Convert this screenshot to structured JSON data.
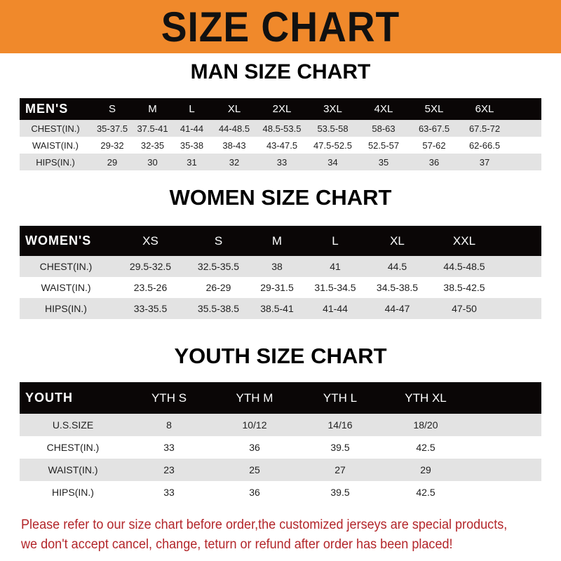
{
  "title": "SIZE CHART",
  "men": {
    "title": "MAN SIZE CHART",
    "header": [
      "MEN'S",
      "S",
      "M",
      "L",
      "XL",
      "2XL",
      "3XL",
      "4XL",
      "5XL",
      "6XL"
    ],
    "rows": [
      [
        "CHEST(IN.)",
        "35-37.5",
        "37.5-41",
        "41-44",
        "44-48.5",
        "48.5-53.5",
        "53.5-58",
        "58-63",
        "63-67.5",
        "67.5-72"
      ],
      [
        "WAIST(IN.)",
        "29-32",
        "32-35",
        "35-38",
        "38-43",
        "43-47.5",
        "47.5-52.5",
        "52.5-57",
        "57-62",
        "62-66.5"
      ],
      [
        "HIPS(IN.)",
        "29",
        "30",
        "31",
        "32",
        "33",
        "34",
        "35",
        "36",
        "37"
      ]
    ]
  },
  "women": {
    "title": "WOMEN SIZE CHART",
    "header": [
      "WOMEN'S",
      "XS",
      "S",
      "M",
      "L",
      "XL",
      "XXL"
    ],
    "rows": [
      [
        "CHEST(IN.)",
        "29.5-32.5",
        "32.5-35.5",
        "38",
        "41",
        "44.5",
        "44.5-48.5"
      ],
      [
        "WAIST(IN.)",
        "23.5-26",
        "26-29",
        "29-31.5",
        "31.5-34.5",
        "34.5-38.5",
        "38.5-42.5"
      ],
      [
        "HIPS(IN.)",
        "33-35.5",
        "35.5-38.5",
        "38.5-41",
        "41-44",
        "44-47",
        "47-50"
      ]
    ]
  },
  "youth": {
    "title": "YOUTH SIZE CHART",
    "header": [
      "YOUTH",
      "YTH S",
      "YTH M",
      "YTH L",
      "YTH XL"
    ],
    "rows": [
      [
        "U.S.SIZE",
        "8",
        "10/12",
        "14/16",
        "18/20"
      ],
      [
        "CHEST(IN.)",
        "33",
        "36",
        "39.5",
        "42.5"
      ],
      [
        "WAIST(IN.)",
        "23",
        "25",
        "27",
        "29"
      ],
      [
        "HIPS(IN.)",
        "33",
        "36",
        "39.5",
        "42.5"
      ]
    ]
  },
  "footer": [
    "Please refer to our size chart before order,the customized jerseys are special products,",
    "we don't accept cancel, change, teturn or refund after order has been placed!"
  ],
  "colors": {
    "banner": "#f0892b",
    "header_row": "#0a0606",
    "stripe": "#e3e3e3",
    "notice": "#b3262a"
  }
}
